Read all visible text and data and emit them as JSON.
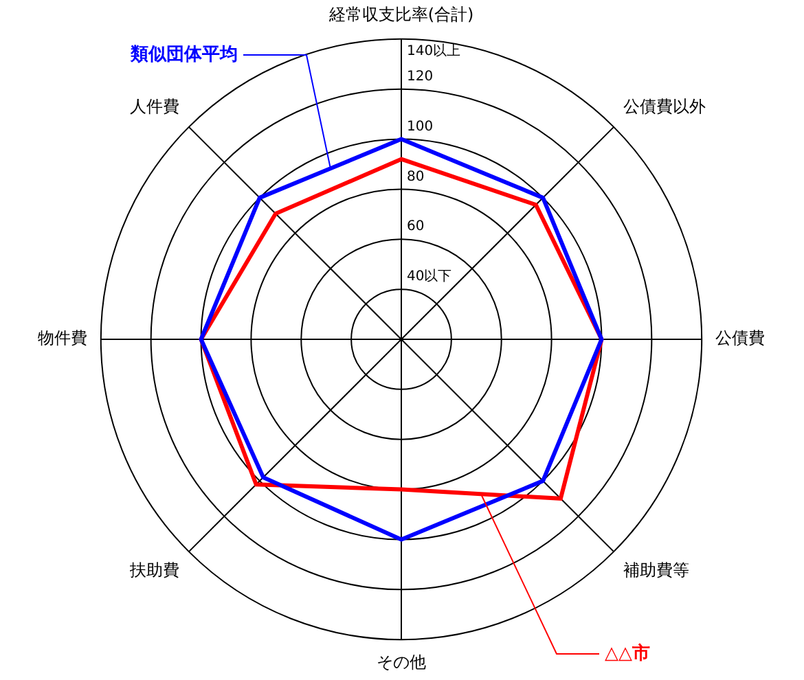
{
  "chart_data": {
    "type": "radar",
    "categories": [
      "経常収支比率(合計)",
      "公債費以外",
      "公債費",
      "補助費等",
      "その他",
      "扶助費",
      "物件費",
      "人件費"
    ],
    "series": [
      {
        "name": "類似団体平均",
        "color": "#0000ff",
        "values": [
          100,
          100,
          100,
          100,
          100,
          98,
          100,
          100
        ]
      },
      {
        "name": "△△市",
        "color": "#ff0000",
        "values": [
          92,
          96,
          100,
          110,
          80,
          102,
          100,
          91
        ]
      }
    ],
    "ylim": [
      20,
      140
    ],
    "yticks": [
      {
        "value": 40,
        "label": "40以下"
      },
      60,
      80,
      100,
      120,
      {
        "value": 140,
        "label": "140以上"
      }
    ],
    "grid": true,
    "legend": false
  }
}
